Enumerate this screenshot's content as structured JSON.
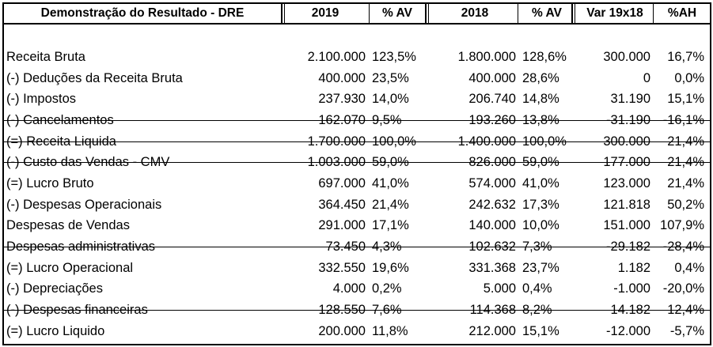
{
  "table": {
    "headers": {
      "label": "Demonstração do Resultado - DRE",
      "y2019": "2019",
      "av2019": "% AV",
      "y2018": "2018",
      "av2018": "% AV",
      "var": "Var 19x18",
      "ah": "%AH"
    },
    "rows": [
      {
        "label": "Receita Bruta",
        "v2019": "2.100.000",
        "av2019": "123,5%",
        "v2018": "1.800.000",
        "av2018": "128,6%",
        "var": "300.000",
        "ah": "16,7%"
      },
      {
        "label": "(-) Deduções da Receita Bruta",
        "v2019": "400.000",
        "av2019": "23,5%",
        "v2018": "400.000",
        "av2018": "28,6%",
        "var": "0",
        "ah": "0,0%"
      },
      {
        "label": "(-) Impostos",
        "v2019": "237.930",
        "av2019": "14,0%",
        "v2018": "206.740",
        "av2018": "14,8%",
        "var": "31.190",
        "ah": "15,1%"
      },
      {
        "label": "(-) Cancelamentos",
        "v2019": "162.070",
        "av2019": "9,5%",
        "v2018": "193.260",
        "av2018": "13,8%",
        "var": "-31.190",
        "ah": "-16,1%"
      },
      {
        "label": "(=) Receita Liquida",
        "v2019": "1.700.000",
        "av2019": "100,0%",
        "v2018": "1.400.000",
        "av2018": "100,0%",
        "var": "300.000",
        "ah": "21,4%"
      },
      {
        "label": "(-) Custo das Vendas - CMV",
        "v2019": "1.003.000",
        "av2019": "59,0%",
        "v2018": "826.000",
        "av2018": "59,0%",
        "var": "177.000",
        "ah": "21,4%"
      },
      {
        "label": "(=) Lucro Bruto",
        "v2019": "697.000",
        "av2019": "41,0%",
        "v2018": "574.000",
        "av2018": "41,0%",
        "var": "123.000",
        "ah": "21,4%"
      },
      {
        "label": "(-) Despesas Operacionais",
        "v2019": "364.450",
        "av2019": "21,4%",
        "v2018": "242.632",
        "av2018": "17,3%",
        "var": "121.818",
        "ah": "50,2%"
      },
      {
        "label": "Despesas de Vendas",
        "v2019": "291.000",
        "av2019": "17,1%",
        "v2018": "140.000",
        "av2018": "10,0%",
        "var": "151.000",
        "ah": "107,9%"
      },
      {
        "label": "Despesas administrativas",
        "v2019": "73.450",
        "av2019": "4,3%",
        "v2018": "102.632",
        "av2018": "7,3%",
        "var": "-29.182",
        "ah": "-28,4%"
      },
      {
        "label": "(=) Lucro Operacional",
        "v2019": "332.550",
        "av2019": "19,6%",
        "v2018": "331.368",
        "av2018": "23,7%",
        "var": "1.182",
        "ah": "0,4%"
      },
      {
        "label": "(-) Depreciações",
        "v2019": "4.000",
        "av2019": "0,2%",
        "v2018": "5.000",
        "av2018": "0,4%",
        "var": "-1.000",
        "ah": "-20,0%"
      },
      {
        "label": "(-) Despesas financeiras",
        "v2019": "128.550",
        "av2019": "7,6%",
        "v2018": "114.368",
        "av2018": "8,2%",
        "var": "14.182",
        "ah": "12,4%"
      },
      {
        "label": "(=) Lucro Liquido",
        "v2019": "200.000",
        "av2019": "11,8%",
        "v2018": "212.000",
        "av2018": "15,1%",
        "var": "-12.000",
        "ah": "-5,7%"
      }
    ]
  }
}
